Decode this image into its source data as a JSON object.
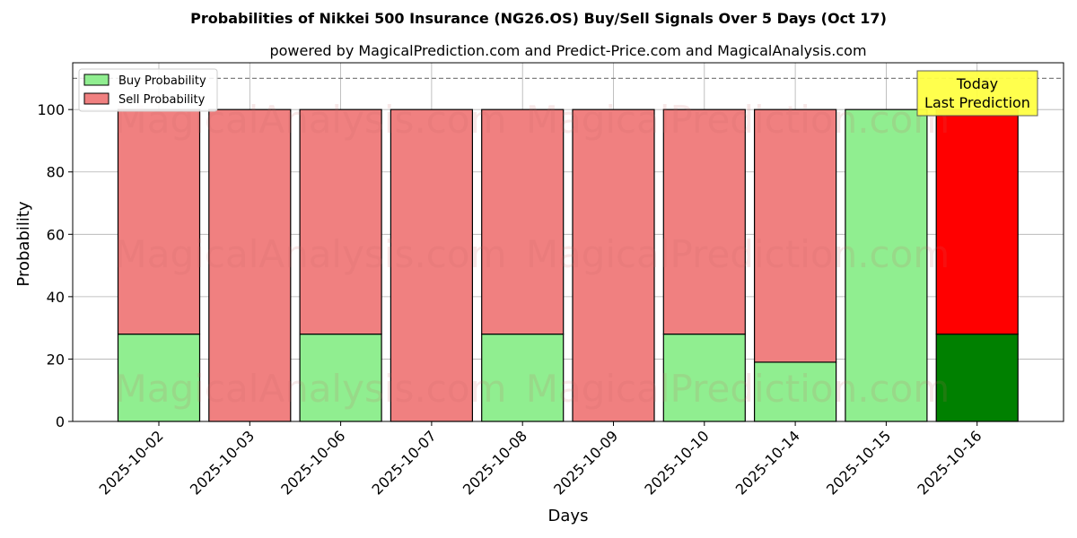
{
  "chart_data": {
    "type": "bar",
    "stacked": true,
    "title": "Probabilities of Nikkei 500 Insurance (NG26.OS) Buy/Sell Signals Over 5 Days (Oct 17)",
    "subtitle": "powered by MagicalPrediction.com and Predict-Price.com and MagicalAnalysis.com",
    "xlabel": "Days",
    "ylabel": "Probability",
    "ylim": [
      0,
      115
    ],
    "yticks": [
      0,
      20,
      40,
      60,
      80,
      100
    ],
    "grid": true,
    "legend_position": "top-left",
    "reference_line": 110,
    "categories": [
      "2025-10-02",
      "2025-10-03",
      "2025-10-06",
      "2025-10-07",
      "2025-10-08",
      "2025-10-09",
      "2025-10-10",
      "2025-10-14",
      "2025-10-15",
      "2025-10-16"
    ],
    "series": [
      {
        "name": "Buy Probability",
        "color": "#90ee90",
        "highlight_color": "#008000",
        "values": [
          28,
          0,
          28,
          0,
          28,
          0,
          28,
          19,
          100,
          28
        ]
      },
      {
        "name": "Sell Probability",
        "color": "#f08080",
        "highlight_color": "#ff0000",
        "values": [
          72,
          100,
          72,
          100,
          72,
          100,
          72,
          81,
          0,
          72
        ]
      }
    ],
    "highlight_index": 9,
    "annotation": {
      "line1": "Today",
      "line2": "Last Prediction",
      "bg_color": "#ffff44"
    },
    "watermarks": [
      "MagicalAnalysis.com",
      "MagicalPrediction.com"
    ]
  }
}
